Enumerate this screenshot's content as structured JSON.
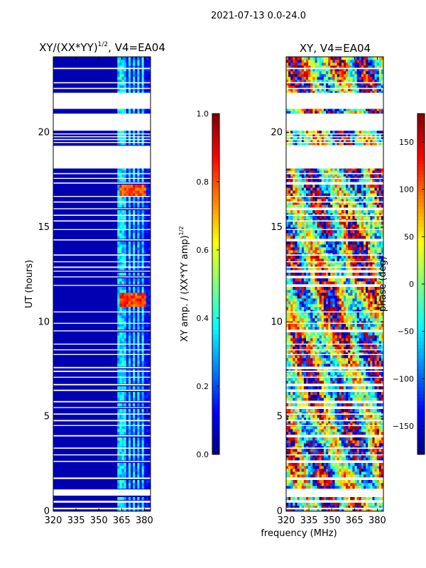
{
  "figure": {
    "suptitle": "2021-07-13 0.0-24.0",
    "shared_xlabel": "frequency (MHz)"
  },
  "chart_data": [
    {
      "type": "heatmap",
      "title": "XY/(XX*YY)^(1/2), V4=EA04",
      "title_main": "XY/(XX*YY)",
      "title_exp": "1/2",
      "title_tail": ", V4=EA04",
      "xlabel": "",
      "ylabel": "UT (hours)",
      "xlim": [
        320,
        384
      ],
      "ylim": [
        0,
        24
      ],
      "xticks": [
        320,
        335,
        350,
        365,
        380
      ],
      "yticks": [
        0,
        5,
        10,
        15,
        20
      ],
      "colorbar": {
        "label": "XY amp. / (XX*YY amp)^(1/2)",
        "label_main": "XY amp. / (XX*YY amp)",
        "label_exp": "1/2",
        "range": [
          0.0,
          1.0
        ],
        "ticks": [
          "0.0",
          "0.2",
          "0.4",
          "0.6",
          "0.8",
          "1.0"
        ],
        "colormap": "jet"
      },
      "description_values": {
        "background_level": 0.05,
        "band_channels_MHz": [
          364,
          367,
          370,
          373,
          376,
          379
        ],
        "band_level": 0.35,
        "rfi_flare_hours": [
          11.2,
          17.0
        ],
        "rfi_flare_level": 0.85
      }
    },
    {
      "type": "heatmap",
      "title": "XY, V4=EA04",
      "xlabel": "",
      "ylabel": "",
      "xlim": [
        320,
        384
      ],
      "ylim": [
        0,
        24
      ],
      "xticks": [
        320,
        335,
        350,
        365,
        380
      ],
      "yticks": [
        0,
        5,
        10,
        15,
        20
      ],
      "colorbar": {
        "label": "phase (deg)",
        "range": [
          -180,
          180
        ],
        "ticks": [
          "−150",
          "−100",
          "−50",
          "0",
          "50",
          "100",
          "150"
        ],
        "colormap": "jet"
      }
    }
  ],
  "flagged_hours": [
    [
      0.1,
      0.18
    ],
    [
      0.45,
      0.55
    ],
    [
      0.82,
      1.15
    ],
    [
      1.7,
      1.78
    ],
    [
      2.6,
      2.66
    ],
    [
      2.95,
      3.0
    ],
    [
      3.3,
      3.36
    ],
    [
      3.95,
      4.02
    ],
    [
      4.5,
      4.55
    ],
    [
      4.75,
      4.82
    ],
    [
      5.1,
      5.16
    ],
    [
      5.45,
      5.5
    ],
    [
      5.75,
      5.82
    ],
    [
      6.35,
      6.42
    ],
    [
      6.65,
      6.72
    ],
    [
      7.05,
      7.1
    ],
    [
      7.35,
      7.42
    ],
    [
      7.55,
      7.62
    ],
    [
      8.25,
      8.3
    ],
    [
      8.5,
      8.55
    ],
    [
      8.8,
      8.85
    ],
    [
      9.5,
      9.55
    ],
    [
      9.9,
      9.95
    ],
    [
      10.5,
      10.55
    ],
    [
      11.9,
      11.95
    ],
    [
      12.35,
      12.4
    ],
    [
      12.65,
      12.7
    ],
    [
      12.85,
      12.92
    ],
    [
      13.15,
      13.2
    ],
    [
      13.5,
      13.56
    ],
    [
      14.3,
      14.36
    ],
    [
      14.85,
      14.9
    ],
    [
      15.3,
      15.36
    ],
    [
      15.6,
      15.66
    ],
    [
      15.95,
      16.0
    ],
    [
      16.3,
      16.36
    ],
    [
      16.6,
      16.65
    ],
    [
      17.3,
      17.36
    ],
    [
      17.55,
      17.6
    ],
    [
      17.8,
      17.86
    ],
    [
      18.1,
      19.3
    ],
    [
      19.45,
      19.5
    ],
    [
      19.6,
      19.66
    ],
    [
      19.75,
      19.8
    ],
    [
      19.9,
      19.95
    ],
    [
      20.1,
      21.0
    ],
    [
      21.25,
      22.1
    ],
    [
      22.3,
      22.36
    ],
    [
      22.6,
      22.66
    ],
    [
      23.35,
      23.42
    ]
  ]
}
